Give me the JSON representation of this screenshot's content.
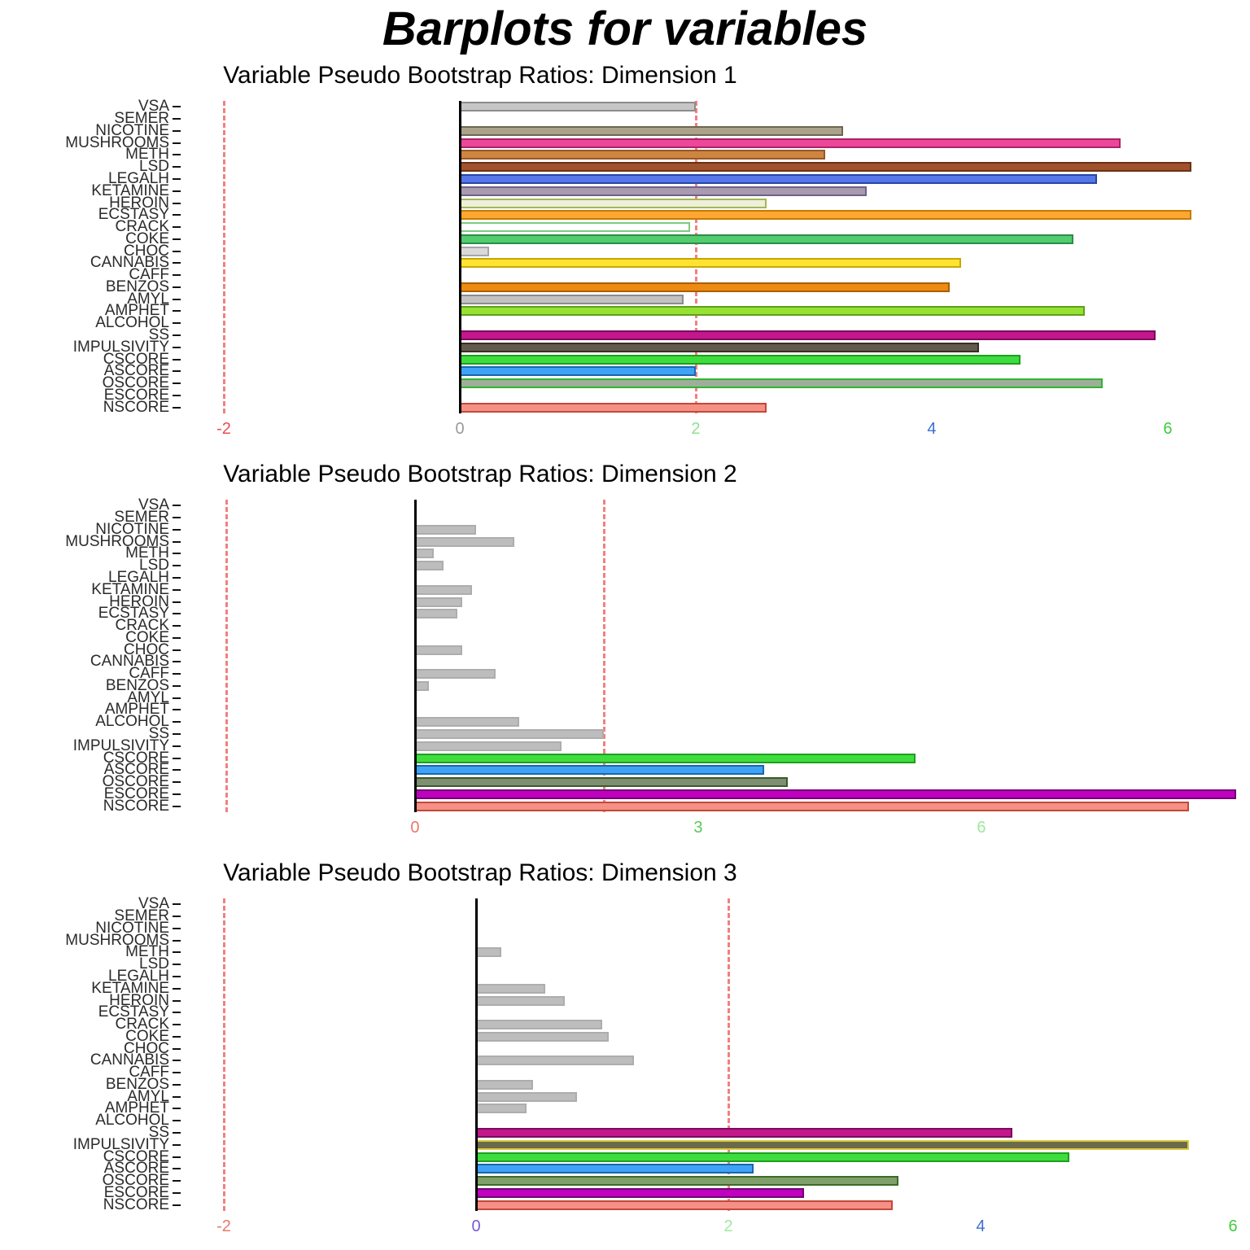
{
  "page": {
    "title": "Barplots for variables"
  },
  "chart_data": [
    {
      "type": "bar",
      "orientation": "horizontal",
      "title": "Variable Pseudo Bootstrap Ratios: Dimension 1",
      "categories": [
        "VSA",
        "SEMER",
        "NICOTINE",
        "MUSHROOMS",
        "METH",
        "LSD",
        "LEGALH",
        "KETAMINE",
        "HEROIN",
        "ECSTASY",
        "CRACK",
        "COKE",
        "CHOC",
        "CANNABIS",
        "CAFF",
        "BENZOS",
        "AMYL",
        "AMPHET",
        "ALCOHOL",
        "SS",
        "IMPULSIVITY",
        "CSCORE",
        "ASCORE",
        "OSCORE",
        "ESCORE",
        "NSCORE"
      ],
      "values": [
        2.0,
        0,
        3.25,
        5.6,
        3.1,
        6.2,
        5.4,
        3.45,
        2.6,
        6.2,
        1.95,
        5.2,
        0.25,
        4.25,
        0,
        4.15,
        1.9,
        5.3,
        0,
        5.9,
        4.4,
        4.75,
        2.0,
        5.45,
        0,
        2.6
      ],
      "bar_fills": [
        "#C6C6C6",
        null,
        "#ABA28C",
        "#EE4699",
        "#CD8540",
        "#A0522D",
        "#5577E8",
        "#A89BB0",
        "#EFEFDC",
        "#FFA733",
        "#FFFFFF",
        "#52CC6E",
        "#D9D9D9",
        "#FFE333",
        null,
        "#EE8A11",
        "#C2C2C2",
        "#97E034",
        null,
        "#C2188C",
        "#63594C",
        "#3EDD3E",
        "#3FA3F5",
        "#9FAE9A",
        null,
        "#F49084"
      ],
      "bar_borders": [
        "#8C8C8C",
        null,
        "#6E6650",
        "#A8246B",
        "#96572A",
        "#6B3015",
        "#2746A8",
        "#70608A",
        "#9FB955",
        "#C47A00",
        "#80C980",
        "#2D8C49",
        "#A6A6A6",
        "#C7A800",
        null,
        "#A85F00",
        "#8C8C8C",
        "#5FA01A",
        null,
        "#7D0A5A",
        "#362F26",
        "#1F9E1F",
        "#1766B0",
        "#31B431",
        null,
        "#C4473C"
      ],
      "xlim": [
        -2.414,
        6.697
      ],
      "ticks": [
        {
          "v": -2,
          "label": "-2",
          "color": "#E85050"
        },
        {
          "v": 0,
          "label": "0",
          "color": "#9A9A9A"
        },
        {
          "v": 2,
          "label": "2",
          "color": "#8FE08F"
        },
        {
          "v": 4,
          "label": "4",
          "color": "#3B6FD4"
        },
        {
          "v": 6,
          "label": "6",
          "color": "#3ECC3E"
        }
      ],
      "thresholds": [
        -2,
        2
      ],
      "threshold_color": "#F28080",
      "xlabel": "",
      "ylabel": "",
      "grid": false,
      "legend": false
    },
    {
      "type": "bar",
      "orientation": "horizontal",
      "title": "Variable Pseudo Bootstrap Ratios: Dimension 2",
      "categories": [
        "VSA",
        "SEMER",
        "NICOTINE",
        "MUSHROOMS",
        "METH",
        "LSD",
        "LEGALH",
        "KETAMINE",
        "HEROIN",
        "ECSTASY",
        "CRACK",
        "COKE",
        "CHOC",
        "CANNABIS",
        "CAFF",
        "BENZOS",
        "AMYL",
        "AMPHET",
        "ALCOHOL",
        "SS",
        "IMPULSIVITY",
        "CSCORE",
        "ASCORE",
        "OSCORE",
        "ESCORE",
        "NSCORE"
      ],
      "values": [
        0,
        0,
        0.65,
        1.05,
        0.2,
        0.3,
        0,
        0.6,
        0.5,
        0.45,
        0,
        0,
        0.5,
        0,
        0.85,
        0.15,
        0,
        0,
        1.1,
        2.0,
        1.55,
        5.3,
        3.7,
        3.95,
        8.7,
        8.2
      ],
      "bar_fills": [
        null,
        null,
        "#BDBDBD",
        "#BDBDBD",
        "#BDBDBD",
        "#BDBDBD",
        null,
        "#BDBDBD",
        "#BDBDBD",
        "#BDBDBD",
        null,
        null,
        "#BDBDBD",
        null,
        "#BDBDBD",
        "#BDBDBD",
        null,
        null,
        "#BDBDBD",
        "#BDBDBD",
        "#BDBDBD",
        "#3EDD3E",
        "#3FA3F5",
        "#7E8F72",
        "#BF00BF",
        "#F49084"
      ],
      "bar_borders": [
        null,
        null,
        "#ADADAD",
        "#ADADAD",
        "#ADADAD",
        "#ADADAD",
        null,
        "#ADADAD",
        "#ADADAD",
        "#ADADAD",
        null,
        null,
        "#ADADAD",
        null,
        "#ADADAD",
        "#ADADAD",
        null,
        null,
        "#ADADAD",
        "#ADADAD",
        "#ADADAD",
        "#1F9E1F",
        "#1766B0",
        "#3C5A28",
        "#730073",
        "#C4473C"
      ],
      "xlim": [
        -2.543,
        8.845
      ],
      "ticks": [
        {
          "v": 0,
          "label": "0",
          "color": "#E87868"
        },
        {
          "v": 3,
          "label": "3",
          "color": "#57C957"
        },
        {
          "v": 6,
          "label": "6",
          "color": "#A0E8A0"
        }
      ],
      "thresholds": [
        -2,
        2
      ],
      "threshold_color": "#F28080",
      "xlabel": "",
      "ylabel": "",
      "grid": false,
      "legend": false
    },
    {
      "type": "bar",
      "orientation": "horizontal",
      "title": "Variable Pseudo Bootstrap Ratios: Dimension 3",
      "categories": [
        "VSA",
        "SEMER",
        "NICOTINE",
        "MUSHROOMS",
        "METH",
        "LSD",
        "LEGALH",
        "KETAMINE",
        "HEROIN",
        "ECSTASY",
        "CRACK",
        "COKE",
        "CHOC",
        "CANNABIS",
        "CAFF",
        "BENZOS",
        "AMYL",
        "AMPHET",
        "ALCOHOL",
        "SS",
        "IMPULSIVITY",
        "CSCORE",
        "ASCORE",
        "OSCORE",
        "ESCORE",
        "NSCORE"
      ],
      "values": [
        0,
        0,
        0,
        0,
        0.2,
        0,
        0,
        0.55,
        0.7,
        0,
        1.0,
        1.05,
        0,
        1.25,
        0,
        0.45,
        0.8,
        0.4,
        0,
        4.25,
        5.65,
        4.7,
        2.2,
        3.35,
        2.6,
        3.3
      ],
      "bar_fills": [
        null,
        null,
        null,
        null,
        "#BDBDBD",
        null,
        null,
        "#BDBDBD",
        "#BDBDBD",
        null,
        "#BDBDBD",
        "#BDBDBD",
        null,
        "#BDBDBD",
        null,
        "#BDBDBD",
        "#BDBDBD",
        "#BDBDBD",
        null,
        "#C2188C",
        "#6B6B4A",
        "#3EDD3E",
        "#3FA3F5",
        "#7FA06A",
        "#BF00BF",
        "#F49084"
      ],
      "bar_borders": [
        null,
        null,
        null,
        null,
        "#ADADAD",
        null,
        null,
        "#ADADAD",
        "#ADADAD",
        null,
        "#ADADAD",
        "#ADADAD",
        null,
        "#ADADAD",
        null,
        "#ADADAD",
        "#ADADAD",
        "#ADADAD",
        null,
        "#7D0A5A",
        "#D9C93D",
        "#1F9E1F",
        "#1766B0",
        "#3C6B28",
        "#730073",
        "#C4473C"
      ],
      "xlim": [
        -2.387,
        6.135
      ],
      "ticks": [
        {
          "v": -2,
          "label": "-2",
          "color": "#E87868"
        },
        {
          "v": 0,
          "label": "0",
          "color": "#7A5AD4"
        },
        {
          "v": 2,
          "label": "2",
          "color": "#A0E8A0"
        },
        {
          "v": 4,
          "label": "4",
          "color": "#3B6FD4"
        },
        {
          "v": 6,
          "label": "6",
          "color": "#3ECC3E"
        }
      ],
      "thresholds": [
        -2,
        2
      ],
      "threshold_color": "#F28080",
      "xlabel": "",
      "ylabel": "",
      "grid": false,
      "legend": false
    }
  ]
}
